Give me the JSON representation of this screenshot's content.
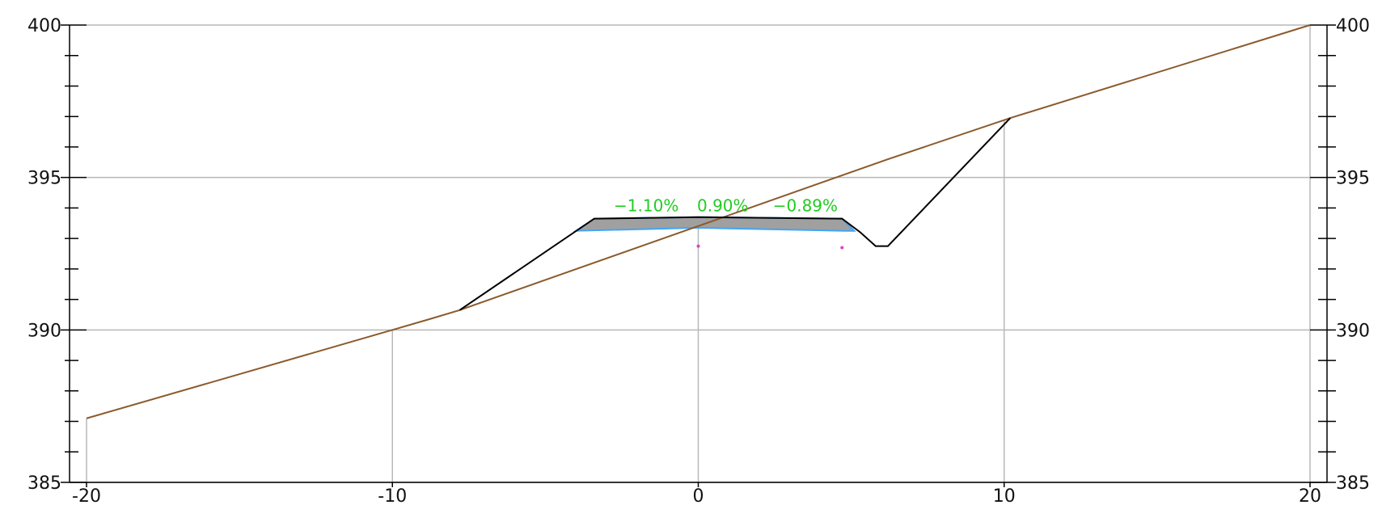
{
  "chart_data": {
    "type": "line",
    "title": "",
    "xlabel": "",
    "ylabel": "",
    "xlim": [
      -20,
      20
    ],
    "ylim": [
      385,
      400
    ],
    "grid": true,
    "x_ticks": [
      "-20",
      "-10",
      "0",
      "10",
      "20"
    ],
    "x_tick_values": [
      -20,
      -10,
      0,
      10,
      20
    ],
    "y_ticks": [
      "385",
      "390",
      "395",
      "400"
    ],
    "y_tick_values": [
      385,
      390,
      395,
      400
    ],
    "extra_vertical_gridlines": [
      -10,
      0,
      10
    ],
    "series": [
      {
        "role": "ground",
        "color": "#8b5a2b",
        "x": [
          -20,
          -10,
          -8.8,
          -7.8,
          6.2,
          10.2,
          20
        ],
        "y": [
          387.1,
          390.0,
          390.35,
          390.65,
          395.6,
          396.95,
          400.0
        ]
      },
      {
        "role": "cross-section",
        "color": "#000000",
        "x": [
          -7.8,
          -3.4,
          0,
          4.7,
          5.3,
          5.8,
          6.2,
          10.2
        ],
        "y": [
          390.65,
          393.65,
          393.7,
          393.65,
          393.2,
          392.75,
          392.75,
          396.95
        ]
      },
      {
        "role": "pavement",
        "fill": "#a0a0a0",
        "outline": "#42a5f5",
        "x": [
          -4.0,
          -3.4,
          0,
          4.7,
          5.1,
          4.8,
          0,
          -4.0
        ],
        "y": [
          393.25,
          393.65,
          393.7,
          393.65,
          393.25,
          393.25,
          393.35,
          393.25
        ]
      }
    ],
    "points": [
      {
        "x": 0,
        "y": 392.75,
        "color": "#e040c0"
      },
      {
        "x": 4.7,
        "y": 392.7,
        "color": "#e040c0"
      }
    ],
    "annotations": [
      {
        "text": "−1.10%",
        "x": -1.7,
        "y": 394.1,
        "color": "#22cc22"
      },
      {
        "text": "0.90%",
        "x": 0.8,
        "y": 394.1,
        "color": "#22cc22"
      },
      {
        "text": "−0.89%",
        "x": 3.5,
        "y": 394.1,
        "color": "#22cc22"
      }
    ]
  }
}
